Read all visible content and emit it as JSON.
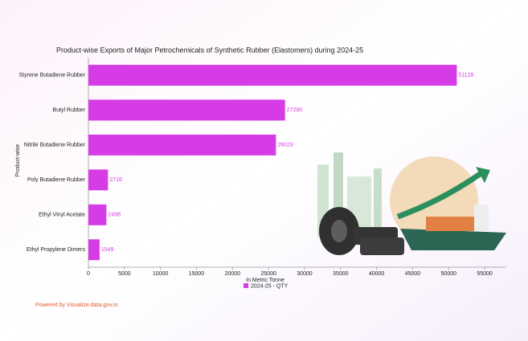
{
  "chart_data": {
    "type": "bar",
    "orientation": "horizontal",
    "title": "Product-wise Exports of Major Petrochemicals of Synthetic Rubber (Elastomers) during 2024-25",
    "categories": [
      "Styrene Butadiene Rubber",
      "Butyl Rubber",
      "Nitrile Butadiene Rubber",
      "Poly Butadiene Rubber",
      "Ethyl Vinyl Acetate",
      "Ethyl Propylene Dimers"
    ],
    "series": [
      {
        "name": "2024-25 - QTY",
        "color": "#d63ce6",
        "values": [
          51128,
          27290,
          26029,
          2716,
          2498,
          1549
        ]
      }
    ],
    "xlabel": "In Metric Tonne",
    "ylabel": "Product-wise",
    "xlim": [
      0,
      58000
    ],
    "xticks": [
      0,
      5000,
      10000,
      15000,
      20000,
      25000,
      30000,
      35000,
      40000,
      45000,
      50000,
      55000
    ],
    "footer": "Powered by Visualize.data.gov.in"
  }
}
